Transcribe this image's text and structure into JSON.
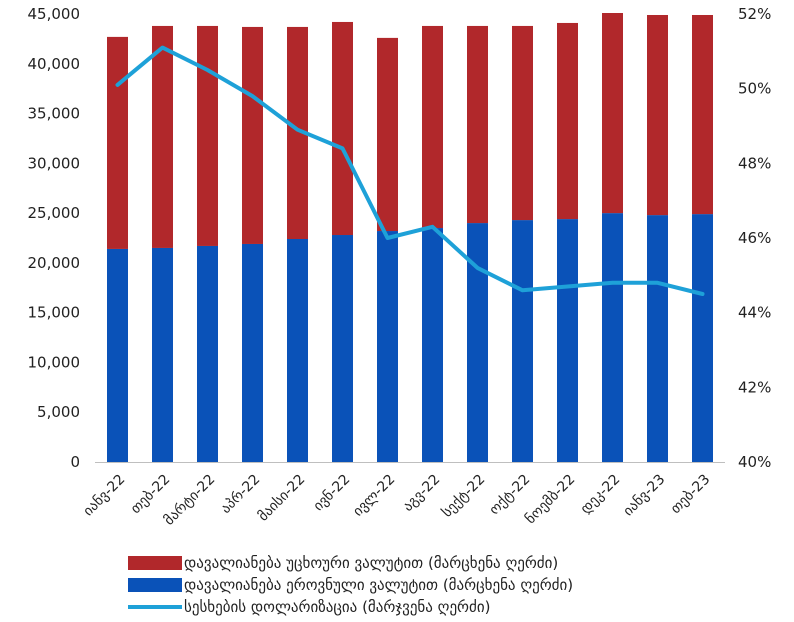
{
  "chart_data": {
    "type": "bar",
    "stacked": true,
    "categories": [
      "იანვ-22",
      "თებ-22",
      "მარტი-22",
      "აპრ-22",
      "მაისი-22",
      "ივნ-22",
      "ივლ-22",
      "აგვ-22",
      "სექტ-22",
      "ოქტ-22",
      "ნოემბ-22",
      "დეკ-22",
      "იანვ-23",
      "თებ-23"
    ],
    "series": [
      {
        "name": "დავალიანება ეროვნული ვალუტით (მარცხენა ღერძი)",
        "axis": "left",
        "type": "bar",
        "color": "#0a52b8",
        "values": [
          21400,
          21500,
          21700,
          21900,
          22400,
          22800,
          23200,
          23500,
          24000,
          24300,
          24400,
          25000,
          24800,
          24900
        ]
      },
      {
        "name": "დავალიანება უცხოური ვალუტით (მარცხენა ღერძი)",
        "axis": "left",
        "type": "bar",
        "color": "#b1282b",
        "values": [
          21300,
          22300,
          22100,
          21800,
          21300,
          21400,
          19400,
          20300,
          19800,
          19500,
          19700,
          20100,
          20100,
          20000
        ]
      },
      {
        "name": "სესხების დოლარიზაცია (მარჯვენა ღერძი)",
        "axis": "right",
        "type": "line",
        "color": "#1ea1d8",
        "values": [
          50.1,
          51.1,
          50.5,
          49.8,
          48.9,
          48.4,
          46.0,
          46.3,
          45.2,
          44.6,
          44.7,
          44.8,
          44.8,
          44.5
        ]
      }
    ],
    "ylim_left": [
      0,
      45000
    ],
    "yticks_left": [
      "45,000",
      "40,000",
      "35,000",
      "30,000",
      "25,000",
      "20,000",
      "15,000",
      "10,000",
      "5,000",
      "0"
    ],
    "ylim_right": [
      40,
      52
    ],
    "yticks_right": [
      "52%",
      "50%",
      "48%",
      "46%",
      "44%",
      "42%",
      "40%"
    ],
    "grid": false,
    "legend_position": "bottom"
  },
  "legend": {
    "items": [
      {
        "label": "დავალიანება უცხოური ვალუტით (მარცხენა ღერძი)",
        "color": "#b1282b",
        "kind": "box"
      },
      {
        "label": "დავალიანება ეროვნული ვალუტით (მარცხენა ღერძი)",
        "color": "#0a52b8",
        "kind": "box"
      },
      {
        "label": "სესხების დოლარიზაცია (მარჯვენა ღერძი)",
        "color": "#1ea1d8",
        "kind": "line"
      }
    ]
  }
}
